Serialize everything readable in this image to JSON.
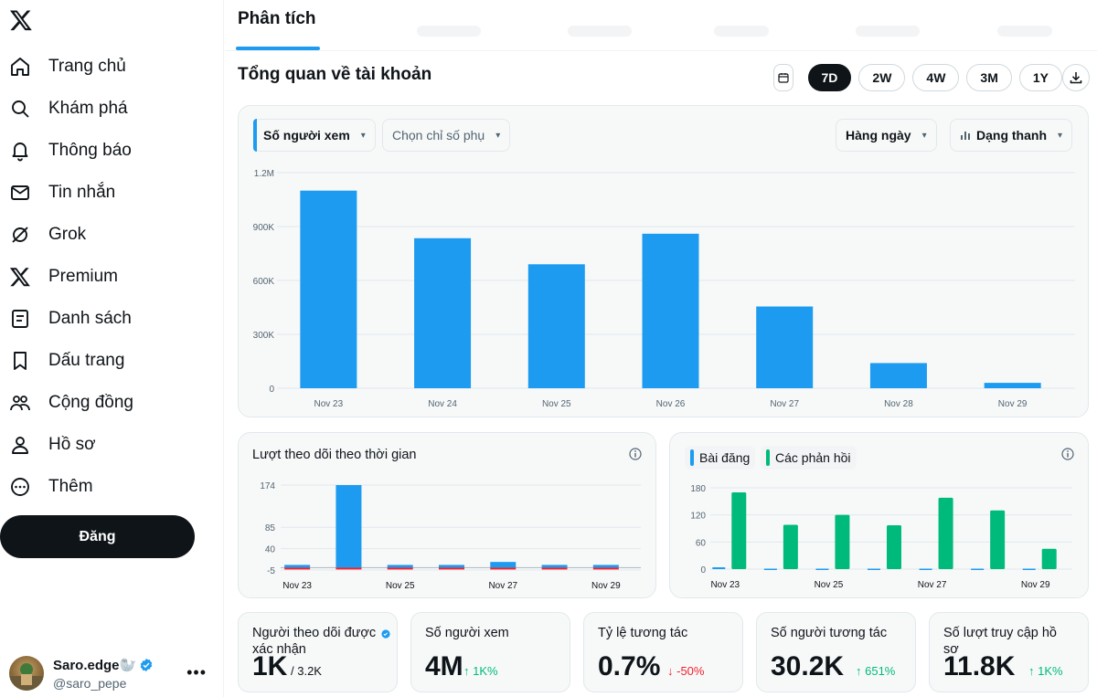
{
  "sidebar": {
    "items": [
      {
        "label": "Trang chủ",
        "icon": "home-icon"
      },
      {
        "label": "Khám phá",
        "icon": "search-icon"
      },
      {
        "label": "Thông báo",
        "icon": "bell-icon"
      },
      {
        "label": "Tin nhắn",
        "icon": "mail-icon"
      },
      {
        "label": "Grok",
        "icon": "grok-icon"
      },
      {
        "label": "Premium",
        "icon": "x-logo-icon"
      },
      {
        "label": "Danh sách",
        "icon": "list-icon"
      },
      {
        "label": "Dấu trang",
        "icon": "bookmark-icon"
      },
      {
        "label": "Cộng đồng",
        "icon": "community-icon"
      },
      {
        "label": "Hồ sơ",
        "icon": "person-icon"
      },
      {
        "label": "Thêm",
        "icon": "more-circle-icon"
      }
    ],
    "post_label": "Đăng",
    "account": {
      "name": "Saro.edge🦭",
      "handle": "@saro_pepe"
    }
  },
  "header": {
    "tab_active": "Phân tích"
  },
  "overview": {
    "title": "Tổng quan về tài khoản",
    "ranges": [
      "7D",
      "2W",
      "4W",
      "3M",
      "1Y"
    ],
    "selected_range": "7D"
  },
  "main_chart": {
    "metric_label": "Số người xem",
    "secondary_label": "Chọn chỉ số phụ",
    "interval_label": "Hàng ngày",
    "type_label": "Dạng thanh"
  },
  "follow_chart": {
    "title": "Lượt theo dõi theo thời gian"
  },
  "posts_chart": {
    "legend": [
      "Bài đăng",
      "Các phản hồi"
    ]
  },
  "colors": {
    "blue": "#1d9bf0",
    "green": "#00ba7c",
    "red": "#f4212e",
    "dark": "#0f1419"
  },
  "stats": [
    {
      "label": "Người theo dõi được xác nhận",
      "value": "1K",
      "sub": "/ 3.2K",
      "trend": "none"
    },
    {
      "label": "Số người xem",
      "value": "4M",
      "sub": "↑ 1K%",
      "trend": "up"
    },
    {
      "label": "Tỷ lệ tương tác",
      "value": "0.7%",
      "sub": "↓ -50%",
      "trend": "down"
    },
    {
      "label": "Số người tương tác",
      "value": "30.2K",
      "sub": "↑ 651%",
      "trend": "up"
    },
    {
      "label": "Số lượt truy cập hồ sơ",
      "value": "11.8K",
      "sub": "↑ 1K%",
      "trend": "up"
    }
  ],
  "chart_data": [
    {
      "type": "bar",
      "title": "Số người xem",
      "categories": [
        "Nov 23",
        "Nov 24",
        "Nov 25",
        "Nov 26",
        "Nov 27",
        "Nov 28",
        "Nov 29"
      ],
      "values": [
        1100000,
        835000,
        690000,
        860000,
        455000,
        140000,
        30000
      ],
      "y_ticks": [
        "0",
        "300K",
        "600K",
        "900K",
        "1.2M"
      ],
      "ylim": [
        0,
        1200000
      ]
    },
    {
      "type": "bar",
      "title": "Lượt theo dõi theo thời gian",
      "categories": [
        "Nov 23",
        "Nov 24",
        "Nov 25",
        "Nov 26",
        "Nov 27",
        "Nov 28",
        "Nov 29"
      ],
      "x_tick_labels": [
        "Nov 23",
        "Nov 25",
        "Nov 27",
        "Nov 29"
      ],
      "series": [
        {
          "name": "gain",
          "values": [
            4,
            174,
            3,
            2,
            12,
            5,
            0
          ]
        },
        {
          "name": "loss",
          "values": [
            -2,
            -3,
            -2,
            -1,
            -2,
            -2,
            -1
          ]
        }
      ],
      "y_ticks": [
        "-5",
        "40",
        "85",
        "174"
      ],
      "ylim": [
        -5,
        174
      ]
    },
    {
      "type": "bar",
      "title": "Bài đăng / Các phản hồi",
      "categories": [
        "Nov 23",
        "Nov 24",
        "Nov 25",
        "Nov 26",
        "Nov 27",
        "Nov 28",
        "Nov 29"
      ],
      "x_tick_labels": [
        "Nov 23",
        "Nov 25",
        "Nov 27",
        "Nov 29"
      ],
      "series": [
        {
          "name": "Bài đăng",
          "values": [
            4,
            1,
            1,
            1,
            1,
            1,
            1
          ]
        },
        {
          "name": "Các phản hồi",
          "values": [
            170,
            98,
            120,
            97,
            158,
            130,
            45
          ]
        }
      ],
      "y_ticks": [
        "0",
        "60",
        "120",
        "180"
      ],
      "ylim": [
        0,
        180
      ]
    }
  ]
}
